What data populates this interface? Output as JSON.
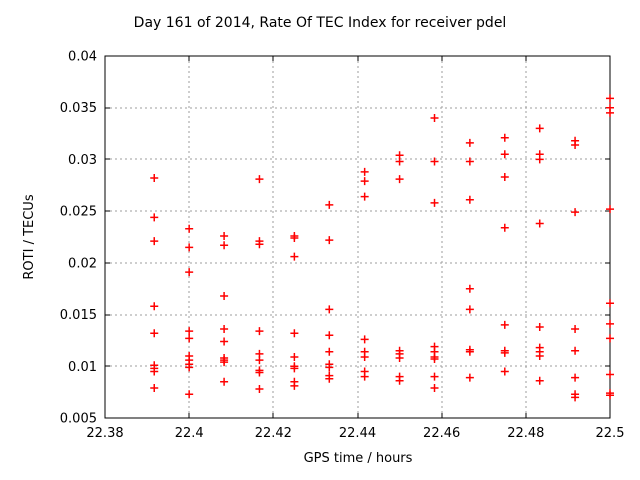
{
  "chart_data": {
    "type": "scatter",
    "title": "Day 161 of 2014, Rate Of TEC Index for receiver pdel",
    "xlabel": "GPS time / hours",
    "ylabel": "ROTI / TECUs",
    "xlim": [
      22.38,
      22.5
    ],
    "ylim": [
      0.005,
      0.04
    ],
    "grid": true,
    "legend": "none",
    "marker": {
      "shape": "plus",
      "color": "#ff0000"
    },
    "grid_color": "#9e9e9e",
    "axis_color": "#000000",
    "xticks": {
      "values": [
        22.38,
        22.4,
        22.42,
        22.44,
        22.46,
        22.48,
        22.5
      ],
      "labels": [
        "22.38",
        "22.4",
        "22.42",
        "22.44",
        "22.46",
        "22.48",
        "22.5"
      ]
    },
    "yticks": {
      "values": [
        0.005,
        0.01,
        0.015,
        0.02,
        0.025,
        0.03,
        0.035,
        0.04
      ],
      "labels": [
        "0.005",
        "0.01",
        "0.015",
        "0.02",
        "0.025",
        "0.03",
        "0.035",
        "0.04"
      ]
    },
    "series": [
      {
        "name": "ROTI",
        "columns": [
          {
            "t": 22.3917,
            "roti": [
              0.0282,
              0.0244,
              0.0221,
              0.0158,
              0.0132,
              0.0101,
              0.0098,
              0.0095,
              0.0079
            ]
          },
          {
            "t": 22.4,
            "roti": [
              0.0233,
              0.0215,
              0.0191,
              0.0134,
              0.0127,
              0.011,
              0.0106,
              0.0102,
              0.0099,
              0.0073
            ]
          },
          {
            "t": 22.4083,
            "roti": [
              0.0226,
              0.0217,
              0.0168,
              0.0136,
              0.0124,
              0.0108,
              0.0106,
              0.0104,
              0.0085
            ]
          },
          {
            "t": 22.4167,
            "roti": [
              0.0281,
              0.0221,
              0.0218,
              0.0134,
              0.0112,
              0.0106,
              0.0096,
              0.0094,
              0.0078
            ]
          },
          {
            "t": 22.425,
            "roti": [
              0.0226,
              0.0224,
              0.0206,
              0.0132,
              0.0109,
              0.01,
              0.0098,
              0.0085,
              0.0081
            ]
          },
          {
            "t": 22.4333,
            "roti": [
              0.0256,
              0.0222,
              0.0155,
              0.013,
              0.0114,
              0.0102,
              0.0099,
              0.0091,
              0.0088
            ]
          },
          {
            "t": 22.4417,
            "roti": [
              0.0288,
              0.0279,
              0.0264,
              0.0126,
              0.0114,
              0.0109,
              0.0095,
              0.009
            ]
          },
          {
            "t": 22.45,
            "roti": [
              0.0304,
              0.0298,
              0.0281,
              0.0115,
              0.0112,
              0.0108,
              0.009,
              0.0086
            ]
          },
          {
            "t": 22.4583,
            "roti": [
              0.034,
              0.0298,
              0.0258,
              0.0119,
              0.0114,
              0.0109,
              0.0107,
              0.009,
              0.0079
            ]
          },
          {
            "t": 22.4667,
            "roti": [
              0.0316,
              0.0298,
              0.0261,
              0.0175,
              0.0155,
              0.0116,
              0.0114,
              0.0089
            ]
          },
          {
            "t": 22.475,
            "roti": [
              0.0321,
              0.0305,
              0.0283,
              0.0234,
              0.014,
              0.0115,
              0.0113,
              0.0095
            ]
          },
          {
            "t": 22.4833,
            "roti": [
              0.033,
              0.0305,
              0.03,
              0.0238,
              0.0138,
              0.0118,
              0.0114,
              0.011,
              0.0086
            ]
          },
          {
            "t": 22.4917,
            "roti": [
              0.0318,
              0.0314,
              0.0249,
              0.0136,
              0.0115,
              0.0089,
              0.0073,
              0.007
            ]
          },
          {
            "t": 22.5,
            "roti": [
              0.0359,
              0.035,
              0.0345,
              0.0252,
              0.0161,
              0.0141,
              0.0127,
              0.0092,
              0.0074,
              0.0072
            ]
          }
        ]
      }
    ]
  }
}
